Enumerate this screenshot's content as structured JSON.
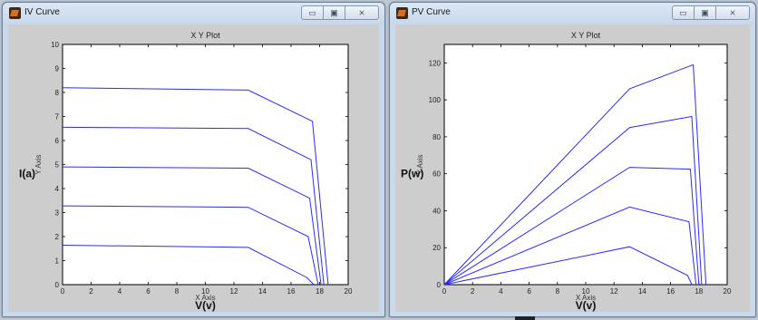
{
  "windows": [
    {
      "title": "IV Curve",
      "controls": {
        "minimize": "▭",
        "maximize": "▣",
        "close": "⨯"
      },
      "icon": "matlab-icon"
    },
    {
      "title": "PV Curve",
      "controls": {
        "minimize": "▭",
        "maximize": "▣",
        "close": "⨯"
      },
      "icon": "matlab-icon"
    }
  ],
  "chart_data": [
    {
      "type": "line",
      "title": "X Y Plot",
      "xlabel_small": "X Axis",
      "xlabel": "V(v)",
      "ylabel_small": "Y Axis",
      "ylabel": "I(a)",
      "xlim": [
        0,
        20
      ],
      "ylim": [
        0,
        10
      ],
      "xticks": [
        0,
        2,
        4,
        6,
        8,
        10,
        12,
        14,
        16,
        18,
        20
      ],
      "yticks": [
        0,
        1,
        2,
        3,
        4,
        5,
        6,
        7,
        8,
        9,
        10
      ],
      "color": "#2b2bff",
      "series": [
        {
          "x": [
            0,
            13,
            17.5,
            18.6
          ],
          "y": [
            8.2,
            8.1,
            6.8,
            0
          ]
        },
        {
          "x": [
            0,
            13,
            17.4,
            18.3
          ],
          "y": [
            6.55,
            6.5,
            5.2,
            0
          ]
        },
        {
          "x": [
            0,
            13,
            17.3,
            18.1
          ],
          "y": [
            4.9,
            4.85,
            3.6,
            0
          ]
        },
        {
          "x": [
            0,
            13,
            17.2,
            17.9
          ],
          "y": [
            3.28,
            3.22,
            2.0,
            0
          ]
        },
        {
          "x": [
            0,
            13,
            17.1,
            17.6
          ],
          "y": [
            1.64,
            1.55,
            0.3,
            0
          ]
        }
      ]
    },
    {
      "type": "line",
      "title": "X Y Plot",
      "xlabel_small": "X Axis",
      "xlabel": "V(v)",
      "ylabel_small": "Y Axis",
      "ylabel": "P(w)",
      "xlim": [
        0,
        20
      ],
      "ylim": [
        0,
        130
      ],
      "xticks": [
        0,
        2,
        4,
        6,
        8,
        10,
        12,
        14,
        16,
        18,
        20
      ],
      "yticks": [
        0,
        20,
        40,
        60,
        80,
        100,
        120
      ],
      "color": "#2b2bff",
      "series": [
        {
          "x": [
            0,
            13.1,
            17.6,
            18.5
          ],
          "y": [
            0,
            106,
            119,
            0
          ]
        },
        {
          "x": [
            0,
            13.1,
            17.5,
            18.2
          ],
          "y": [
            0,
            85,
            91,
            0
          ]
        },
        {
          "x": [
            0,
            13.1,
            17.4,
            18.0
          ],
          "y": [
            0,
            63.5,
            62.5,
            0
          ]
        },
        {
          "x": [
            0,
            13.1,
            17.3,
            17.8
          ],
          "y": [
            0,
            42,
            34,
            0
          ]
        },
        {
          "x": [
            0,
            13.1,
            17.2,
            17.5
          ],
          "y": [
            0,
            20.5,
            5,
            0
          ]
        }
      ]
    }
  ]
}
